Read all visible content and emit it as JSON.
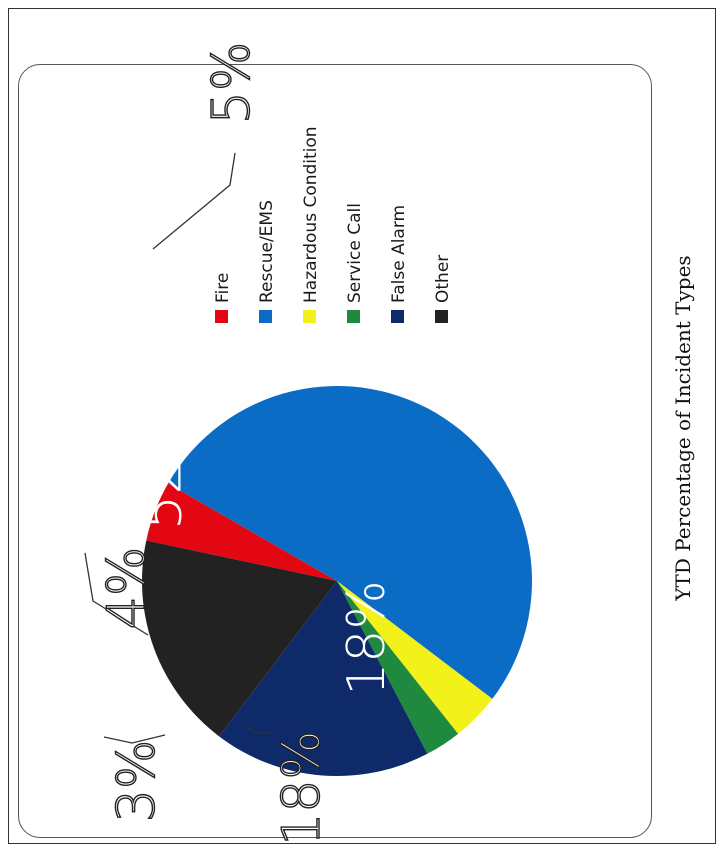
{
  "chart_data": {
    "type": "pie",
    "title": "YTD Percentage of Incident Types",
    "categories": [
      "Fire",
      "Rescue/EMS",
      "Hazardous Condition",
      "Service Call",
      "False Alarm",
      "Other"
    ],
    "values": [
      5,
      52,
      4,
      3,
      18,
      18
    ],
    "labels": [
      "5%",
      "52%",
      "4%",
      "3%",
      "18%",
      "18%"
    ],
    "colors": [
      "#e30613",
      "#0a6cc4",
      "#f2f21a",
      "#1f8a3f",
      "#0e2a68",
      "#222222"
    ],
    "legend_position": "right"
  }
}
